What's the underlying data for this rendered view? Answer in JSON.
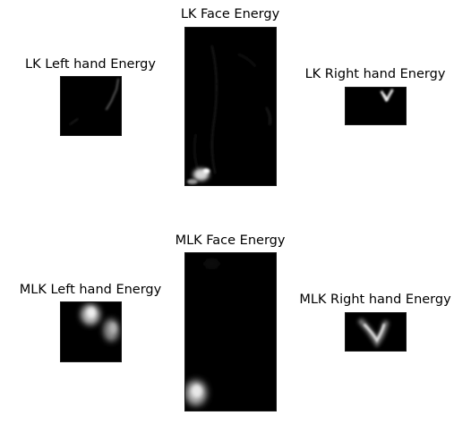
{
  "figure": {
    "panels": {
      "lk_left_hand": {
        "title": "LK Left hand Energy"
      },
      "lk_face": {
        "title": "LK Face Energy"
      },
      "lk_right_hand": {
        "title": "LK Right hand Energy"
      },
      "mlk_left_hand": {
        "title": "MLK Left hand Energy"
      },
      "mlk_face": {
        "title": "MLK Face Energy"
      },
      "mlk_right_hand": {
        "title": "MLK Right hand Energy"
      }
    }
  }
}
